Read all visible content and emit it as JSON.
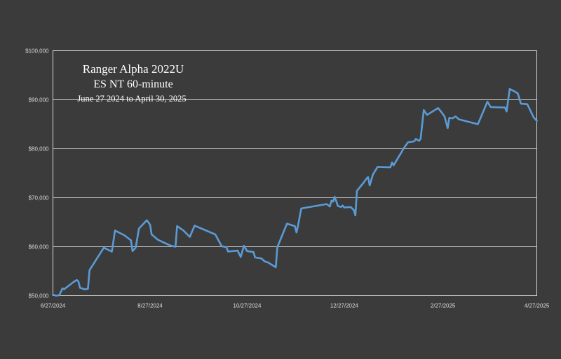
{
  "chart_data": {
    "type": "line",
    "title": "Ranger Alpha 2022U",
    "subtitle": "ES NT 60-minute",
    "subtitle2": "June 27 2024 to April 30, 2025",
    "xlabel": "",
    "ylabel": "",
    "grid": true,
    "legend": "none",
    "x_start": "6/27/2024",
    "x_end": "4/27/2025",
    "x_ticks": [
      "6/27/2024",
      "8/27/2024",
      "10/27/2024",
      "12/27/2024",
      "2/27/2025",
      "4/27/2025"
    ],
    "ylim": [
      50000,
      100000
    ],
    "y_ticks": [
      50000,
      60000,
      70000,
      80000,
      90000,
      100000
    ],
    "y_tick_labels": [
      "$50,000",
      "$60,000",
      "$70,000",
      "$80,000",
      "$90,000",
      "$100,000"
    ],
    "series": [
      {
        "color": "#5b9bd5",
        "points": [
          [
            "2024-06-27",
            50200
          ],
          [
            "2024-06-29",
            50000
          ],
          [
            "2024-07-01",
            50100
          ],
          [
            "2024-07-03",
            51500
          ],
          [
            "2024-07-04",
            51300
          ],
          [
            "2024-07-06",
            51800
          ],
          [
            "2024-07-10",
            52800
          ],
          [
            "2024-07-12",
            53200
          ],
          [
            "2024-07-13",
            52900
          ],
          [
            "2024-07-14",
            51600
          ],
          [
            "2024-07-17",
            51300
          ],
          [
            "2024-07-19",
            51400
          ],
          [
            "2024-07-20",
            55200
          ],
          [
            "2024-07-25",
            57800
          ],
          [
            "2024-07-29",
            59800
          ],
          [
            "2024-08-03",
            59000
          ],
          [
            "2024-08-05",
            63300
          ],
          [
            "2024-08-11",
            62300
          ],
          [
            "2024-08-15",
            61300
          ],
          [
            "2024-08-16",
            59100
          ],
          [
            "2024-08-18",
            59800
          ],
          [
            "2024-08-20",
            63700
          ],
          [
            "2024-08-25",
            65400
          ],
          [
            "2024-08-27",
            64500
          ],
          [
            "2024-08-28",
            62500
          ],
          [
            "2024-09-01",
            61400
          ],
          [
            "2024-09-05",
            60800
          ],
          [
            "2024-09-09",
            60200
          ],
          [
            "2024-09-12",
            60000
          ],
          [
            "2024-09-13",
            64200
          ],
          [
            "2024-09-17",
            63300
          ],
          [
            "2024-09-21",
            62000
          ],
          [
            "2024-09-24",
            64300
          ],
          [
            "2024-10-07",
            62500
          ],
          [
            "2024-10-11",
            60100
          ],
          [
            "2024-10-14",
            59900
          ],
          [
            "2024-10-15",
            59000
          ],
          [
            "2024-10-21",
            59200
          ],
          [
            "2024-10-23",
            57900
          ],
          [
            "2024-10-25",
            60200
          ],
          [
            "2024-10-27",
            59100
          ],
          [
            "2024-10-31",
            58900
          ],
          [
            "2024-11-01",
            57800
          ],
          [
            "2024-11-05",
            57600
          ],
          [
            "2024-11-07",
            57000
          ],
          [
            "2024-11-09",
            56800
          ],
          [
            "2024-11-14",
            55800
          ],
          [
            "2024-11-15",
            59900
          ],
          [
            "2024-11-21",
            64700
          ],
          [
            "2024-11-26",
            64200
          ],
          [
            "2024-11-27",
            62900
          ],
          [
            "2024-11-28",
            64300
          ],
          [
            "2024-11-30",
            67800
          ],
          [
            "2024-12-16",
            68700
          ],
          [
            "2024-12-18",
            68200
          ],
          [
            "2024-12-19",
            69400
          ],
          [
            "2024-12-20",
            69200
          ],
          [
            "2024-12-21",
            70200
          ],
          [
            "2024-12-22",
            69300
          ],
          [
            "2024-12-23",
            68300
          ],
          [
            "2024-12-25",
            68100
          ],
          [
            "2024-12-26",
            68400
          ],
          [
            "2024-12-27",
            68000
          ],
          [
            "2024-12-31",
            68100
          ],
          [
            "2025-01-02",
            67500
          ],
          [
            "2025-01-03",
            66400
          ],
          [
            "2025-01-04",
            71400
          ],
          [
            "2025-01-08",
            73000
          ],
          [
            "2025-01-10",
            73900
          ],
          [
            "2025-01-11",
            74200
          ],
          [
            "2025-01-12",
            72500
          ],
          [
            "2025-01-14",
            74700
          ],
          [
            "2025-01-17",
            76300
          ],
          [
            "2025-01-25",
            76200
          ],
          [
            "2025-01-26",
            77200
          ],
          [
            "2025-01-27",
            76600
          ],
          [
            "2025-02-01",
            79300
          ],
          [
            "2025-02-02",
            79900
          ],
          [
            "2025-02-05",
            81300
          ],
          [
            "2025-02-09",
            81500
          ],
          [
            "2025-02-10",
            82000
          ],
          [
            "2025-02-12",
            81600
          ],
          [
            "2025-02-13",
            82000
          ],
          [
            "2025-02-15",
            87900
          ],
          [
            "2025-02-17",
            86900
          ],
          [
            "2025-02-24",
            88300
          ],
          [
            "2025-02-26",
            87500
          ],
          [
            "2025-02-28",
            86600
          ],
          [
            "2025-03-02",
            84200
          ],
          [
            "2025-03-03",
            86300
          ],
          [
            "2025-03-05",
            86200
          ],
          [
            "2025-03-07",
            86600
          ],
          [
            "2025-03-09",
            86000
          ],
          [
            "2025-03-21",
            85000
          ],
          [
            "2025-03-27",
            89600
          ],
          [
            "2025-03-29",
            88500
          ],
          [
            "2025-04-07",
            88400
          ],
          [
            "2025-04-08",
            87600
          ],
          [
            "2025-04-10",
            92200
          ],
          [
            "2025-04-13",
            91700
          ],
          [
            "2025-04-15",
            91300
          ],
          [
            "2025-04-17",
            89200
          ],
          [
            "2025-04-21",
            89100
          ],
          [
            "2025-04-25",
            86400
          ],
          [
            "2025-05-14",
            85700
          ]
        ]
      }
    ]
  }
}
